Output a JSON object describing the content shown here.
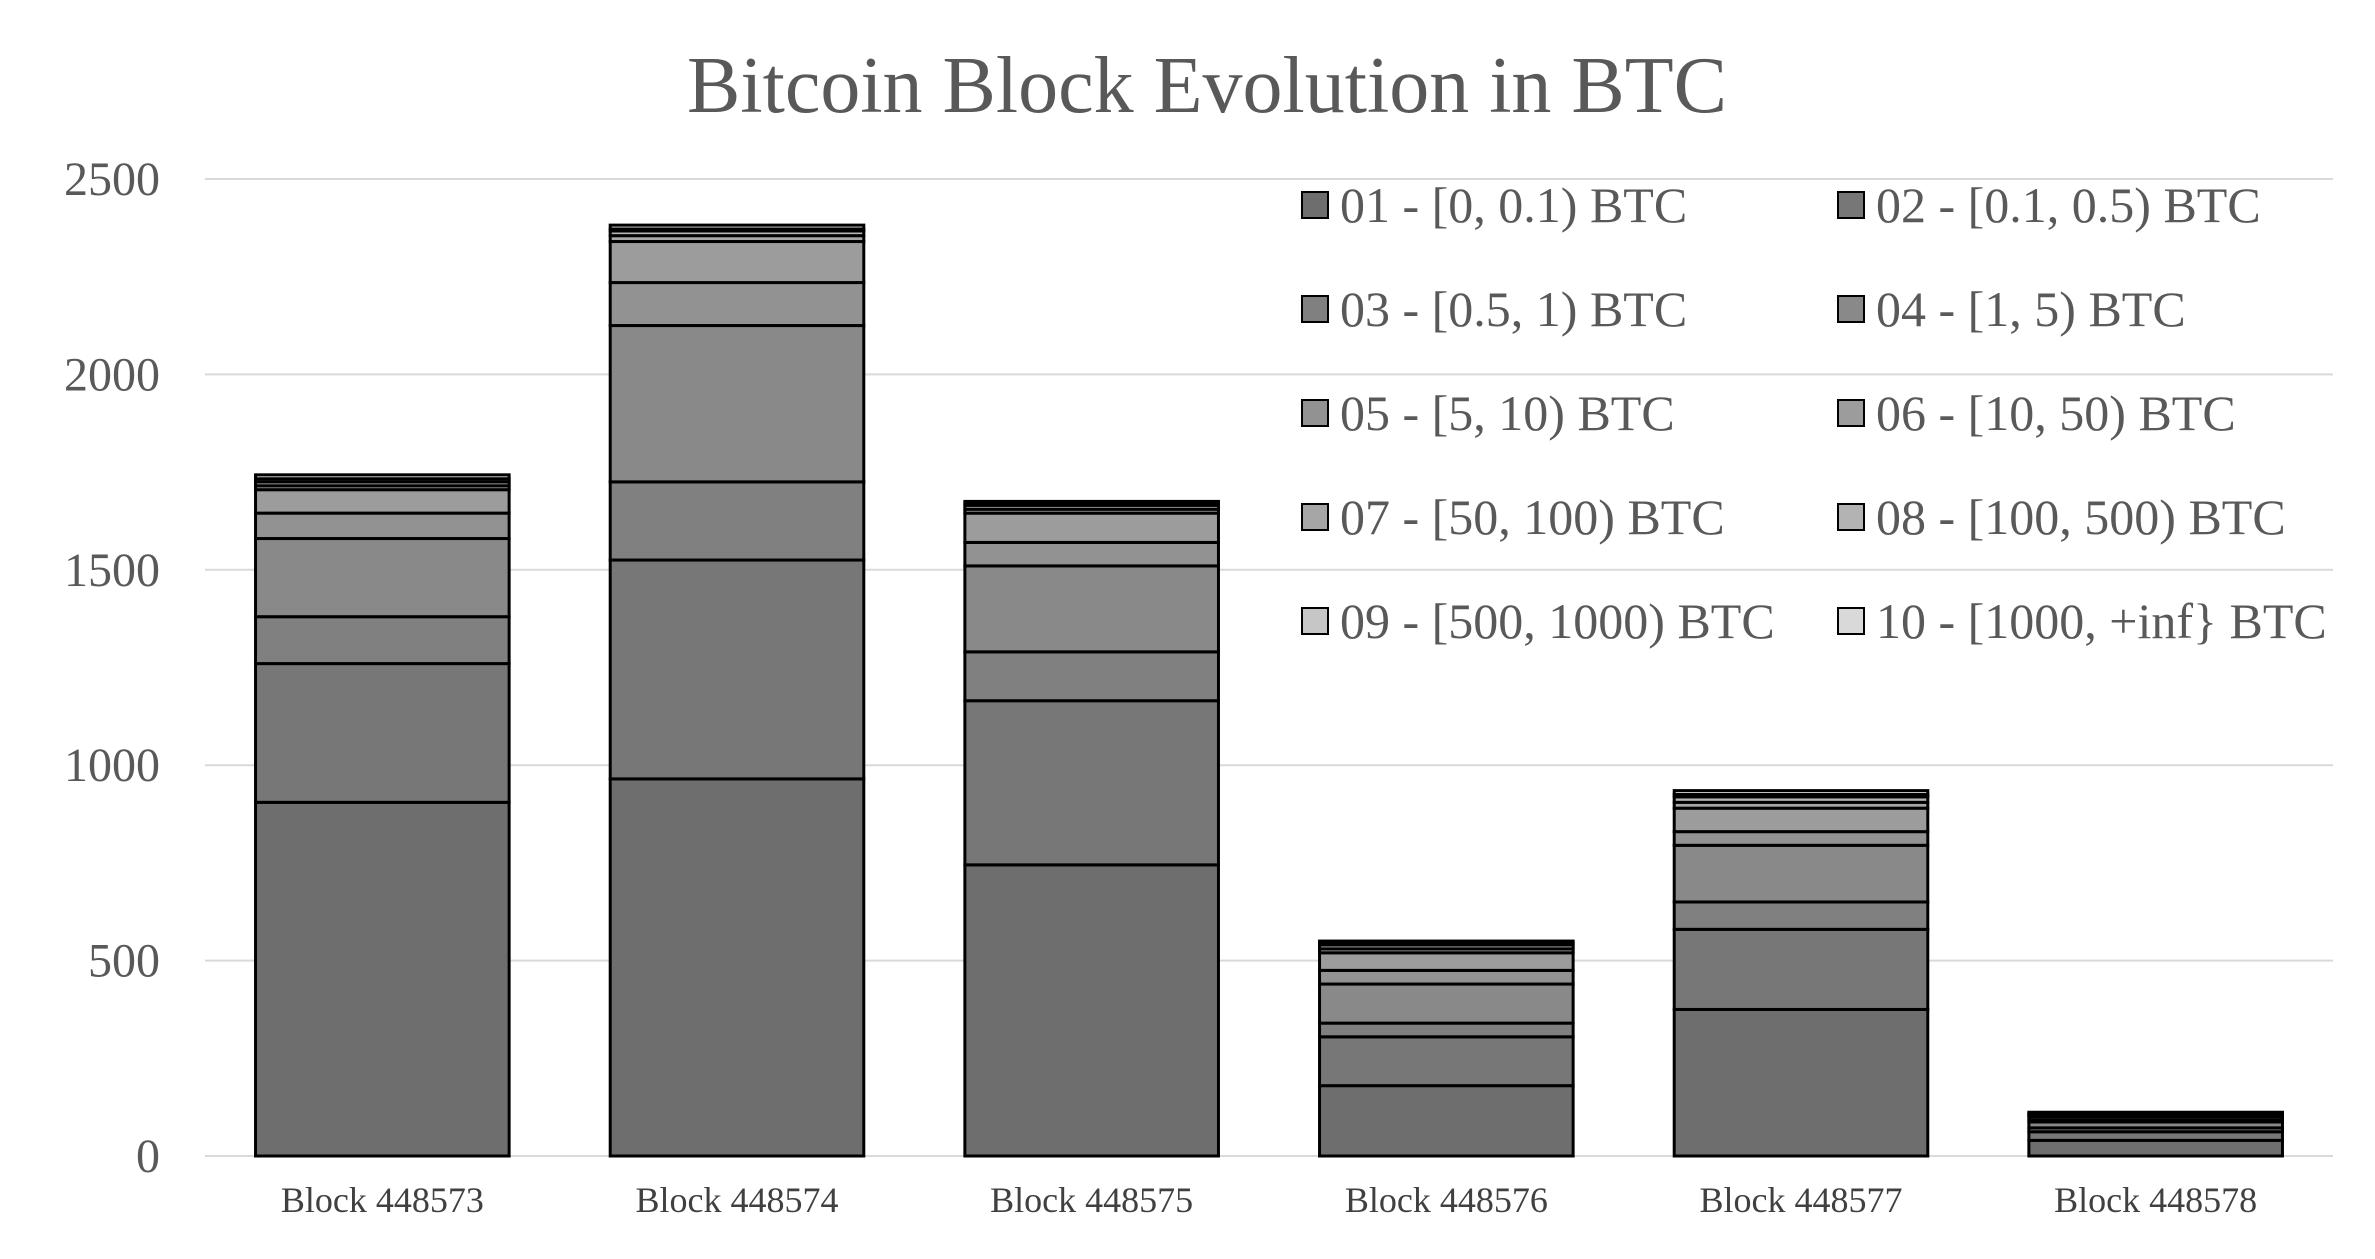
{
  "chart_data": {
    "type": "bar",
    "stacked": true,
    "title": "Bitcoin Block Evolution in BTC",
    "xlabel": "",
    "ylabel": "",
    "ylim": [
      0,
      2500
    ],
    "yticks": [
      0,
      500,
      1000,
      1500,
      2000,
      2500
    ],
    "grid": true,
    "legend_position": "top-right",
    "categories": [
      "Block 448573",
      "Block 448574",
      "Block 448575",
      "Block 448576",
      "Block 448577",
      "Block 448578"
    ],
    "series": [
      {
        "name": "01 - [0, 0.1) BTC",
        "color": "#6d6e6d",
        "values": [
          905,
          965,
          745,
          180,
          375,
          40
        ]
      },
      {
        "name": "02 - [0.1, 0.5) BTC",
        "color": "#767776",
        "values": [
          355,
          560,
          420,
          125,
          205,
          22
        ]
      },
      {
        "name": "03 - [0.5, 1) BTC",
        "color": "#7f807f",
        "values": [
          120,
          200,
          125,
          35,
          70,
          10
        ]
      },
      {
        "name": "04 - [1, 5) BTC",
        "color": "#898989",
        "values": [
          200,
          400,
          220,
          100,
          145,
          15
        ]
      },
      {
        "name": "05 - [5, 10) BTC",
        "color": "#929292",
        "values": [
          65,
          110,
          60,
          35,
          35,
          6
        ]
      },
      {
        "name": "06 - [10, 50) BTC",
        "color": "#9c9c9c",
        "values": [
          60,
          105,
          75,
          45,
          60,
          8
        ]
      },
      {
        "name": "07 - [50, 100) BTC",
        "color": "#a6a6a6",
        "values": [
          10,
          15,
          10,
          10,
          15,
          3
        ]
      },
      {
        "name": "08 - [100, 500) BTC",
        "color": "#b3b3b3",
        "values": [
          10,
          12,
          10,
          10,
          14,
          3
        ]
      },
      {
        "name": "09 - [500, 1000) BTC",
        "color": "#c6c6c6",
        "values": [
          8,
          5,
          5,
          5,
          6,
          2
        ]
      },
      {
        "name": "10 - [1000, +inf} BTC",
        "color": "#d9d9d9",
        "values": [
          10,
          10,
          5,
          5,
          10,
          3
        ]
      }
    ]
  }
}
